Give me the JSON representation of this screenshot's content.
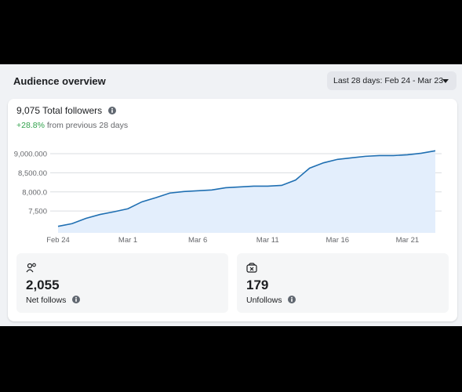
{
  "header": {
    "title": "Audience overview",
    "date_range": "Last 28 days: Feb 24 - Mar 23"
  },
  "summary": {
    "total": "9,075 Total followers",
    "change": "+28.8%",
    "change_label": "from previous 28 days"
  },
  "chart_data": {
    "type": "area",
    "color": "#1f6fb2",
    "fill": "#e3eefc",
    "grid": true,
    "categories": [
      "Feb 24",
      null,
      null,
      null,
      null,
      "Mar 1",
      null,
      null,
      null,
      null,
      "Mar 6",
      null,
      null,
      null,
      null,
      "Mar 11",
      null,
      null,
      null,
      null,
      "Mar 16",
      null,
      null,
      null,
      null,
      "Mar 21",
      null,
      null
    ],
    "values": [
      7100,
      7170,
      7310,
      7410,
      7480,
      7560,
      7740,
      7850,
      7970,
      8010,
      8030,
      8050,
      8110,
      8130,
      8150,
      8150,
      8170,
      8310,
      8620,
      8760,
      8850,
      8890,
      8930,
      8950,
      8950,
      8970,
      9010,
      9075
    ],
    "ylim": [
      6930,
      9245
    ],
    "yticks": [
      {
        "value": 7500,
        "label": "7,500"
      },
      {
        "value": 8000,
        "label": "8,000.0"
      },
      {
        "value": 8500,
        "label": "8,500.00"
      },
      {
        "value": 9000,
        "label": "9,000.000"
      }
    ]
  },
  "stats": [
    {
      "value": "2,055",
      "label": "Net follows"
    },
    {
      "value": "179",
      "label": "Unfollows"
    }
  ]
}
